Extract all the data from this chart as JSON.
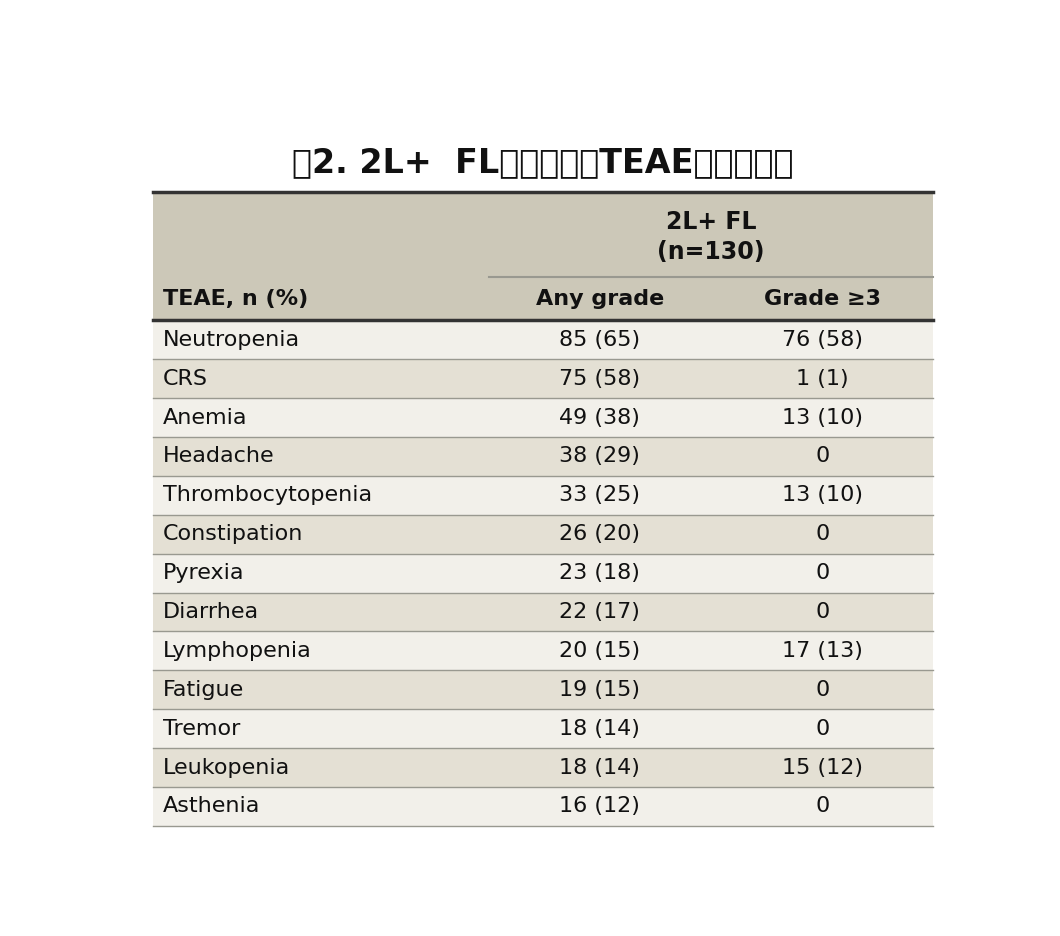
{
  "title": "表2. 2L+  FL中最常见的TEAE（治疗组）",
  "col_header_line1": "2L+ FL",
  "col_header_line2": "(n=130)",
  "col1_header": "TEAE, n (%)",
  "col2_header": "Any grade",
  "col3_header": "Grade ≥3",
  "rows": [
    [
      "Neutropenia",
      "85 (65)",
      "76 (58)"
    ],
    [
      "CRS",
      "75 (58)",
      "1 (1)"
    ],
    [
      "Anemia",
      "49 (38)",
      "13 (10)"
    ],
    [
      "Headache",
      "38 (29)",
      "0"
    ],
    [
      "Thrombocytopenia",
      "33 (25)",
      "13 (10)"
    ],
    [
      "Constipation",
      "26 (20)",
      "0"
    ],
    [
      "Pyrexia",
      "23 (18)",
      "0"
    ],
    [
      "Diarrhea",
      "22 (17)",
      "0"
    ],
    [
      "Lymphopenia",
      "20 (15)",
      "17 (13)"
    ],
    [
      "Fatigue",
      "19 (15)",
      "0"
    ],
    [
      "Tremor",
      "18 (14)",
      "0"
    ],
    [
      "Leukopenia",
      "18 (14)",
      "15 (12)"
    ],
    [
      "Asthenia",
      "16 (12)",
      "0"
    ]
  ],
  "header_bg_color": "#ccc8b8",
  "row_odd_bg": "#e4e0d4",
  "row_even_bg": "#f2f0ea",
  "text_color": "#111111",
  "line_color": "#999990",
  "thick_line_color": "#333333",
  "title_fontsize": 24,
  "header_fontsize": 16,
  "cell_fontsize": 16,
  "fig_width": 10.6,
  "fig_height": 9.36,
  "dpi": 100
}
